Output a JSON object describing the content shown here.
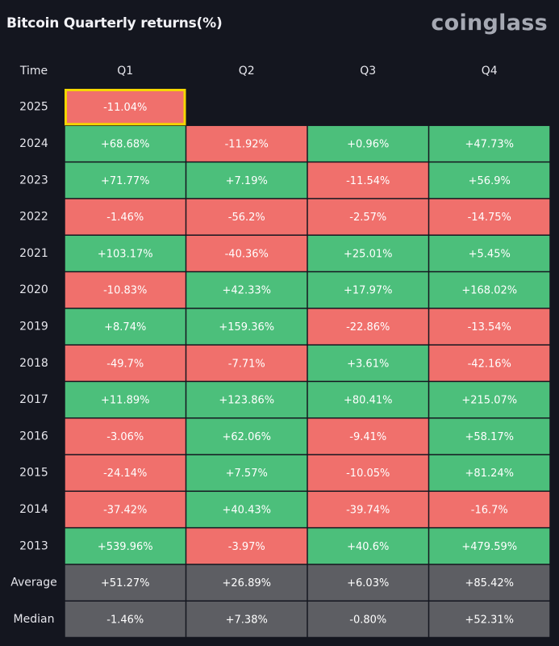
{
  "header": {
    "title": "Bitcoin Quarterly returns(%)",
    "brand": "coinglass"
  },
  "colors": {
    "positive": "#4cbf7b",
    "negative": "#f0706c",
    "summary": "#5d5e63",
    "highlight": "#f5d600"
  },
  "chart_data": {
    "type": "heatmap",
    "title": "Bitcoin Quarterly returns(%)",
    "corner_label": "Time",
    "columns": [
      "Q1",
      "Q2",
      "Q3",
      "Q4"
    ],
    "rows": [
      {
        "label": "2025",
        "values": [
          -11.04,
          null,
          null,
          null
        ],
        "display": [
          "-11.04%",
          "",
          "",
          ""
        ]
      },
      {
        "label": "2024",
        "values": [
          68.68,
          -11.92,
          0.96,
          47.73
        ],
        "display": [
          "+68.68%",
          "-11.92%",
          "+0.96%",
          "+47.73%"
        ]
      },
      {
        "label": "2023",
        "values": [
          71.77,
          7.19,
          -11.54,
          56.9
        ],
        "display": [
          "+71.77%",
          "+7.19%",
          "-11.54%",
          "+56.9%"
        ]
      },
      {
        "label": "2022",
        "values": [
          -1.46,
          -56.2,
          -2.57,
          -14.75
        ],
        "display": [
          "-1.46%",
          "-56.2%",
          "-2.57%",
          "-14.75%"
        ]
      },
      {
        "label": "2021",
        "values": [
          103.17,
          -40.36,
          25.01,
          5.45
        ],
        "display": [
          "+103.17%",
          "-40.36%",
          "+25.01%",
          "+5.45%"
        ]
      },
      {
        "label": "2020",
        "values": [
          -10.83,
          42.33,
          17.97,
          168.02
        ],
        "display": [
          "-10.83%",
          "+42.33%",
          "+17.97%",
          "+168.02%"
        ]
      },
      {
        "label": "2019",
        "values": [
          8.74,
          159.36,
          -22.86,
          -13.54
        ],
        "display": [
          "+8.74%",
          "+159.36%",
          "-22.86%",
          "-13.54%"
        ]
      },
      {
        "label": "2018",
        "values": [
          -49.7,
          -7.71,
          3.61,
          -42.16
        ],
        "display": [
          "-49.7%",
          "-7.71%",
          "+3.61%",
          "-42.16%"
        ]
      },
      {
        "label": "2017",
        "values": [
          11.89,
          123.86,
          80.41,
          215.07
        ],
        "display": [
          "+11.89%",
          "+123.86%",
          "+80.41%",
          "+215.07%"
        ]
      },
      {
        "label": "2016",
        "values": [
          -3.06,
          62.06,
          -9.41,
          58.17
        ],
        "display": [
          "-3.06%",
          "+62.06%",
          "-9.41%",
          "+58.17%"
        ]
      },
      {
        "label": "2015",
        "values": [
          -24.14,
          7.57,
          -10.05,
          81.24
        ],
        "display": [
          "-24.14%",
          "+7.57%",
          "-10.05%",
          "+81.24%"
        ]
      },
      {
        "label": "2014",
        "values": [
          -37.42,
          40.43,
          -39.74,
          -16.7
        ],
        "display": [
          "-37.42%",
          "+40.43%",
          "-39.74%",
          "-16.7%"
        ]
      },
      {
        "label": "2013",
        "values": [
          539.96,
          -3.97,
          40.6,
          479.59
        ],
        "display": [
          "+539.96%",
          "-3.97%",
          "+40.6%",
          "+479.59%"
        ]
      }
    ],
    "summary_rows": [
      {
        "label": "Average",
        "values": [
          51.27,
          26.89,
          6.03,
          85.42
        ],
        "display": [
          "+51.27%",
          "+26.89%",
          "+6.03%",
          "+85.42%"
        ]
      },
      {
        "label": "Median",
        "values": [
          -1.46,
          7.38,
          -0.8,
          52.31
        ],
        "display": [
          "-1.46%",
          "+7.38%",
          "-0.80%",
          "+52.31%"
        ]
      }
    ],
    "highlighted_cell": {
      "row": "2025",
      "column": "Q1"
    }
  }
}
